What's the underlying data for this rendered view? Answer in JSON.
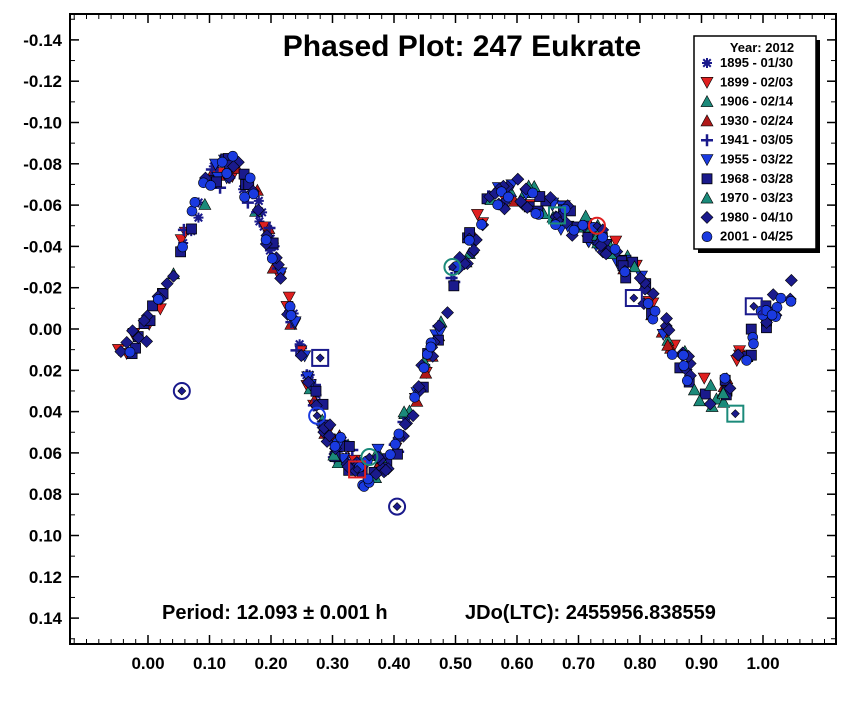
{
  "chart_data": {
    "type": "scatter",
    "title": "Phased Plot: 247 Eukrate",
    "xlabel": "",
    "ylabel": "",
    "xlim": [
      -0.125,
      1.125
    ],
    "ylim": [
      -0.155,
      0.155
    ],
    "y_inverted": true,
    "grid": false,
    "legend_position": "top-right",
    "legend_title": "Year: 2012",
    "x_ticks": [
      0.0,
      0.1,
      0.2,
      0.3,
      0.4,
      0.5,
      0.6,
      0.7,
      0.8,
      0.9,
      1.0
    ],
    "x_tick_labels": [
      "0.00",
      "0.10",
      "0.20",
      "0.30",
      "0.40",
      "0.50",
      "0.60",
      "0.70",
      "0.80",
      "0.90",
      "1.00"
    ],
    "y_ticks": [
      -0.14,
      -0.12,
      -0.1,
      -0.08,
      -0.06,
      -0.04,
      -0.02,
      0.0,
      0.02,
      0.04,
      0.06,
      0.08,
      0.1,
      0.12,
      0.14
    ],
    "y_tick_labels": [
      "-0.14",
      "-0.12",
      "-0.10",
      "-0.08",
      "-0.06",
      "-0.04",
      "-0.02",
      "0.00",
      "0.02",
      "0.04",
      "0.06",
      "0.08",
      "0.10",
      "0.12",
      "0.14"
    ],
    "annotations": {
      "period": "Period: 12.093 ± 0.001 h",
      "epoch": "JDo(LTC): 2455956.838559"
    },
    "lightcurve_model": {
      "description_values": [
        [
          -0.05,
          0.01
        ],
        [
          0.0,
          0.0
        ],
        [
          0.05,
          -0.035
        ],
        [
          0.1,
          -0.072
        ],
        [
          0.14,
          -0.078
        ],
        [
          0.18,
          -0.06
        ],
        [
          0.22,
          -0.02
        ],
        [
          0.26,
          0.025
        ],
        [
          0.3,
          0.055
        ],
        [
          0.35,
          0.07
        ],
        [
          0.4,
          0.06
        ],
        [
          0.45,
          0.02
        ],
        [
          0.5,
          -0.025
        ],
        [
          0.55,
          -0.058
        ],
        [
          0.6,
          -0.068
        ],
        [
          0.65,
          -0.058
        ],
        [
          0.7,
          -0.05
        ],
        [
          0.75,
          -0.04
        ],
        [
          0.8,
          -0.022
        ],
        [
          0.85,
          0.005
        ],
        [
          0.9,
          0.03
        ],
        [
          0.93,
          0.033
        ],
        [
          0.97,
          0.012
        ],
        [
          1.0,
          -0.005
        ],
        [
          1.05,
          -0.02
        ]
      ]
    },
    "series": [
      {
        "name": "1895 - 01/30",
        "marker": "asterisk",
        "color": "#1a1a8c",
        "phase_range": [
          0.04,
          0.36
        ],
        "count": 34
      },
      {
        "name": "1899 - 02/03",
        "marker": "triangle-down",
        "color": "#e02020",
        "phase_range": [
          -0.05,
          0.97
        ],
        "count": 40
      },
      {
        "name": "1906 - 02/14",
        "marker": "triangle-up",
        "color": "#1b8a7a",
        "phase_range": [
          -0.05,
          0.96
        ],
        "count": 26
      },
      {
        "name": "1930 - 02/24",
        "marker": "triangle-up",
        "color": "#b01818",
        "phase_range": [
          0.1,
          0.97
        ],
        "count": 26
      },
      {
        "name": "1941 - 03/05",
        "marker": "plus",
        "color": "#1a1a8c",
        "phase_range": [
          0.05,
          0.6
        ],
        "count": 30
      },
      {
        "name": "1955 - 03/22",
        "marker": "triangle-down",
        "color": "#1a3ae0",
        "phase_range": [
          0.1,
          0.85
        ],
        "count": 34
      },
      {
        "name": "1968 - 03/28",
        "marker": "square",
        "color": "#1a1a8c",
        "phase_range": [
          -0.05,
          1.05
        ],
        "count": 70
      },
      {
        "name": "1970 - 03/23",
        "marker": "triangle-up",
        "color": "#1b8a7a",
        "phase_range": [
          0.3,
          0.95
        ],
        "count": 22
      },
      {
        "name": "1980 - 04/10",
        "marker": "diamond",
        "color": "#1a1a8c",
        "phase_range": [
          -0.05,
          1.05
        ],
        "count": 120
      },
      {
        "name": "2001 - 04/25",
        "marker": "circle",
        "color": "#1a3ae0",
        "phase_range": [
          -0.05,
          1.05
        ],
        "count": 70
      }
    ],
    "open_markers": [
      {
        "x": 0.34,
        "y": 0.068,
        "shape": "square",
        "color": "#e02020"
      },
      {
        "x": 0.28,
        "y": 0.014,
        "shape": "square",
        "color": "#1a1a8c"
      },
      {
        "x": 0.36,
        "y": 0.062,
        "shape": "circle",
        "color": "#1b8a7a"
      },
      {
        "x": 0.405,
        "y": 0.086,
        "shape": "circle",
        "color": "#1a1a8c"
      },
      {
        "x": 0.495,
        "y": -0.03,
        "shape": "circle",
        "color": "#1b8a7a"
      },
      {
        "x": 0.665,
        "y": -0.055,
        "shape": "square",
        "color": "#1b8a7a"
      },
      {
        "x": 0.73,
        "y": -0.05,
        "shape": "circle",
        "color": "#e02020"
      },
      {
        "x": 0.79,
        "y": -0.015,
        "shape": "square",
        "color": "#1a1a8c"
      },
      {
        "x": 0.955,
        "y": 0.041,
        "shape": "square",
        "color": "#1b8a7a"
      },
      {
        "x": 0.985,
        "y": -0.011,
        "shape": "square",
        "color": "#1a1a8c"
      },
      {
        "x": 0.275,
        "y": 0.042,
        "shape": "circle",
        "color": "#1a3ae0"
      },
      {
        "x": 0.055,
        "y": 0.03,
        "shape": "circle",
        "color": "#1a1a8c"
      }
    ]
  }
}
